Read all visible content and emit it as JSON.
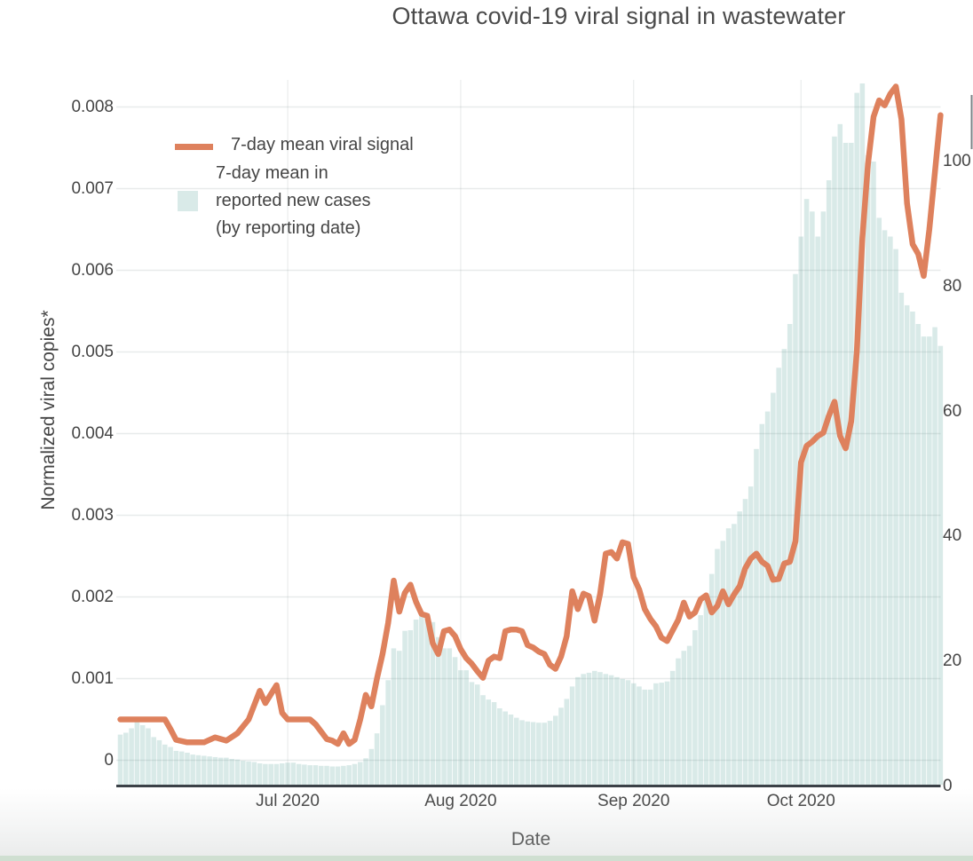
{
  "title": "Ottawa covid-19 viral signal in wastewater",
  "legend": {
    "viral_label": "7-day mean viral signal",
    "cases_label_lines": [
      "7-day mean in",
      "reported new cases",
      "(by reporting date)"
    ]
  },
  "axes": {
    "x": {
      "title": "Date",
      "ticks": [
        {
          "label": "Jul 2020",
          "day": 30
        },
        {
          "label": "Aug 2020",
          "day": 61
        },
        {
          "label": "Sep 2020",
          "day": 92
        },
        {
          "label": "Oct 2020",
          "day": 122
        }
      ]
    },
    "y_left": {
      "title": "Normalized viral copies*",
      "ticks": [
        {
          "label": "0",
          "value": 0
        },
        {
          "label": "0.001",
          "value": 0.001
        },
        {
          "label": "0.002",
          "value": 0.002
        },
        {
          "label": "0.003",
          "value": 0.003
        },
        {
          "label": "0.004",
          "value": 0.004
        },
        {
          "label": "0.005",
          "value": 0.005
        },
        {
          "label": "0.006",
          "value": 0.006
        },
        {
          "label": "0.007",
          "value": 0.007
        },
        {
          "label": "0.008",
          "value": 0.008
        }
      ]
    },
    "y_right": {
      "ticks": [
        {
          "label": "0",
          "value": 0
        },
        {
          "label": "20",
          "value": 20
        },
        {
          "label": "40",
          "value": 40
        },
        {
          "label": "60",
          "value": 60
        },
        {
          "label": "80",
          "value": 80
        },
        {
          "label": "100",
          "value": 100
        }
      ]
    }
  },
  "chart_data": {
    "type": "line+bar",
    "title": "Ottawa covid-19 viral signal in wastewater",
    "xlabel": "Date",
    "ylabel_left": "Normalized viral copies*",
    "x_start_date": "2020-06-01",
    "x_end_date": "2020-10-26",
    "x_unit": "days since 2020-06-01",
    "grid": true,
    "legend_position": "upper-left-inside",
    "y_left_range": [
      -0.0003,
      0.00835
    ],
    "y_right_range": [
      0,
      113
    ],
    "series": [
      {
        "name": "7-day mean viral signal",
        "type": "line",
        "axis": "left",
        "color": "#de815d",
        "points": [
          [
            0,
            0.0005
          ],
          [
            8,
            0.0005
          ],
          [
            9,
            0.00038
          ],
          [
            10,
            0.00025
          ],
          [
            12,
            0.00022
          ],
          [
            15,
            0.00022
          ],
          [
            17,
            0.00028
          ],
          [
            19,
            0.00024
          ],
          [
            21,
            0.00033
          ],
          [
            23,
            0.0005
          ],
          [
            25,
            0.00085
          ],
          [
            26,
            0.0007
          ],
          [
            28,
            0.00092
          ],
          [
            29,
            0.00058
          ],
          [
            30,
            0.0005
          ],
          [
            34,
            0.0005
          ],
          [
            35,
            0.00044
          ],
          [
            37,
            0.00026
          ],
          [
            38,
            0.00024
          ],
          [
            39,
            0.0002
          ],
          [
            40,
            0.00033
          ],
          [
            41,
            0.0002
          ],
          [
            42,
            0.00025
          ],
          [
            43,
            0.0005
          ],
          [
            44,
            0.0008
          ],
          [
            45,
            0.00066
          ],
          [
            46,
            0.001
          ],
          [
            47,
            0.0013
          ],
          [
            48,
            0.00168
          ],
          [
            49,
            0.0022
          ],
          [
            50,
            0.00182
          ],
          [
            51,
            0.00205
          ],
          [
            52,
            0.00215
          ],
          [
            53,
            0.00194
          ],
          [
            54,
            0.00179
          ],
          [
            55,
            0.00177
          ],
          [
            56,
            0.00143
          ],
          [
            57,
            0.0013
          ],
          [
            58,
            0.00158
          ],
          [
            59,
            0.0016
          ],
          [
            60,
            0.00152
          ],
          [
            61,
            0.00136
          ],
          [
            62,
            0.00125
          ],
          [
            63,
            0.00118
          ],
          [
            64,
            0.00109
          ],
          [
            65,
            0.00101
          ],
          [
            66,
            0.00122
          ],
          [
            67,
            0.00127
          ],
          [
            68,
            0.00125
          ],
          [
            69,
            0.00158
          ],
          [
            70,
            0.0016
          ],
          [
            71,
            0.0016
          ],
          [
            72,
            0.00158
          ],
          [
            73,
            0.00141
          ],
          [
            74,
            0.00138
          ],
          [
            75,
            0.00133
          ],
          [
            76,
            0.0013
          ],
          [
            77,
            0.00117
          ],
          [
            78,
            0.00112
          ],
          [
            79,
            0.00127
          ],
          [
            80,
            0.00152
          ],
          [
            81,
            0.00207
          ],
          [
            82,
            0.00185
          ],
          [
            83,
            0.00204
          ],
          [
            84,
            0.00201
          ],
          [
            85,
            0.00171
          ],
          [
            86,
            0.00204
          ],
          [
            87,
            0.00253
          ],
          [
            88,
            0.00255
          ],
          [
            89,
            0.00247
          ],
          [
            90,
            0.00267
          ],
          [
            91,
            0.00265
          ],
          [
            92,
            0.00224
          ],
          [
            93,
            0.00209
          ],
          [
            94,
            0.00185
          ],
          [
            95,
            0.00173
          ],
          [
            96,
            0.00164
          ],
          [
            97,
            0.0015
          ],
          [
            98,
            0.00146
          ],
          [
            99,
            0.00159
          ],
          [
            100,
            0.00172
          ],
          [
            101,
            0.00193
          ],
          [
            102,
            0.00176
          ],
          [
            103,
            0.00181
          ],
          [
            104,
            0.00197
          ],
          [
            105,
            0.00202
          ],
          [
            106,
            0.00181
          ],
          [
            107,
            0.00189
          ],
          [
            108,
            0.00207
          ],
          [
            109,
            0.00191
          ],
          [
            110,
            0.00203
          ],
          [
            111,
            0.00213
          ],
          [
            112,
            0.00235
          ],
          [
            113,
            0.00247
          ],
          [
            114,
            0.00253
          ],
          [
            115,
            0.00243
          ],
          [
            116,
            0.00238
          ],
          [
            117,
            0.00221
          ],
          [
            118,
            0.00222
          ],
          [
            119,
            0.00241
          ],
          [
            120,
            0.00243
          ],
          [
            121,
            0.00268
          ],
          [
            122,
            0.00365
          ],
          [
            123,
            0.00385
          ],
          [
            124,
            0.0039
          ],
          [
            125,
            0.00397
          ],
          [
            126,
            0.00401
          ],
          [
            127,
            0.00422
          ],
          [
            128,
            0.00439
          ],
          [
            129,
            0.00397
          ],
          [
            130,
            0.00382
          ],
          [
            131,
            0.00415
          ],
          [
            132,
            0.005
          ],
          [
            133,
            0.0064
          ],
          [
            134,
            0.0073
          ],
          [
            135,
            0.00788
          ],
          [
            136,
            0.00808
          ],
          [
            137,
            0.00802
          ],
          [
            138,
            0.00816
          ],
          [
            139,
            0.00825
          ],
          [
            140,
            0.00785
          ],
          [
            141,
            0.00682
          ],
          [
            142,
            0.00632
          ],
          [
            143,
            0.0062
          ],
          [
            144,
            0.00593
          ],
          [
            145,
            0.0065
          ],
          [
            146,
            0.0072
          ],
          [
            147,
            0.0079
          ]
        ]
      },
      {
        "name": "7-day mean in reported new cases (by reporting date)",
        "type": "bar",
        "axis": "right",
        "color": "#d9eae8",
        "start_day": 0,
        "values": [
          8.3,
          8.6,
          9.3,
          10.3,
          9.8,
          9.3,
          7.9,
          7.4,
          6.7,
          6.3,
          5.7,
          5.6,
          5.4,
          5.1,
          5.0,
          4.9,
          4.8,
          4.7,
          4.6,
          4.6,
          4.4,
          4.3,
          4.1,
          4.0,
          3.9,
          3.7,
          3.6,
          3.6,
          3.6,
          3.7,
          3.8,
          3.8,
          3.6,
          3.5,
          3.4,
          3.4,
          3.3,
          3.3,
          3.2,
          3.2,
          3.3,
          3.4,
          3.6,
          3.9,
          4.5,
          6.0,
          8.5,
          13.0,
          17.0,
          22.1,
          21.7,
          24.9,
          25.0,
          26.7,
          27.4,
          27.7,
          26.3,
          23.9,
          22.1,
          22.1,
          20.7,
          18.6,
          18.6,
          16.7,
          16.3,
          14.6,
          13.9,
          13.5,
          12.5,
          12.0,
          11.5,
          11.0,
          10.6,
          10.4,
          10.3,
          10.2,
          10.2,
          10.5,
          11.3,
          12.6,
          14.0,
          16.0,
          17.5,
          18.0,
          18.2,
          18.5,
          18.3,
          18.0,
          17.8,
          17.5,
          17.2,
          17.0,
          16.5,
          16.0,
          15.5,
          15.5,
          16.5,
          16.6,
          16.8,
          18.5,
          20.5,
          21.7,
          22.5,
          25.0,
          27.4,
          30.0,
          34.0,
          38.0,
          39.3,
          41.3,
          42.0,
          44.0,
          46.0,
          48.0,
          54.0,
          58.0,
          60.0,
          63.0,
          67.0,
          70.0,
          74.0,
          82.0,
          88.0,
          94.0,
          92.0,
          88.0,
          92.0,
          97.0,
          104.0,
          106.0,
          103.0,
          103.0,
          111.0,
          112.5,
          101.0,
          100.0,
          91.0,
          89.0,
          88.0,
          86.0,
          79.0,
          77.0,
          76.0,
          74.0,
          72.0,
          72.0,
          73.5,
          70.5
        ]
      }
    ]
  },
  "colors": {
    "line": "#de815d",
    "bars": "#d9eae8",
    "axis_line": "#3b4147",
    "text": "#444444",
    "bottom_strip": "#cfdfd1"
  }
}
